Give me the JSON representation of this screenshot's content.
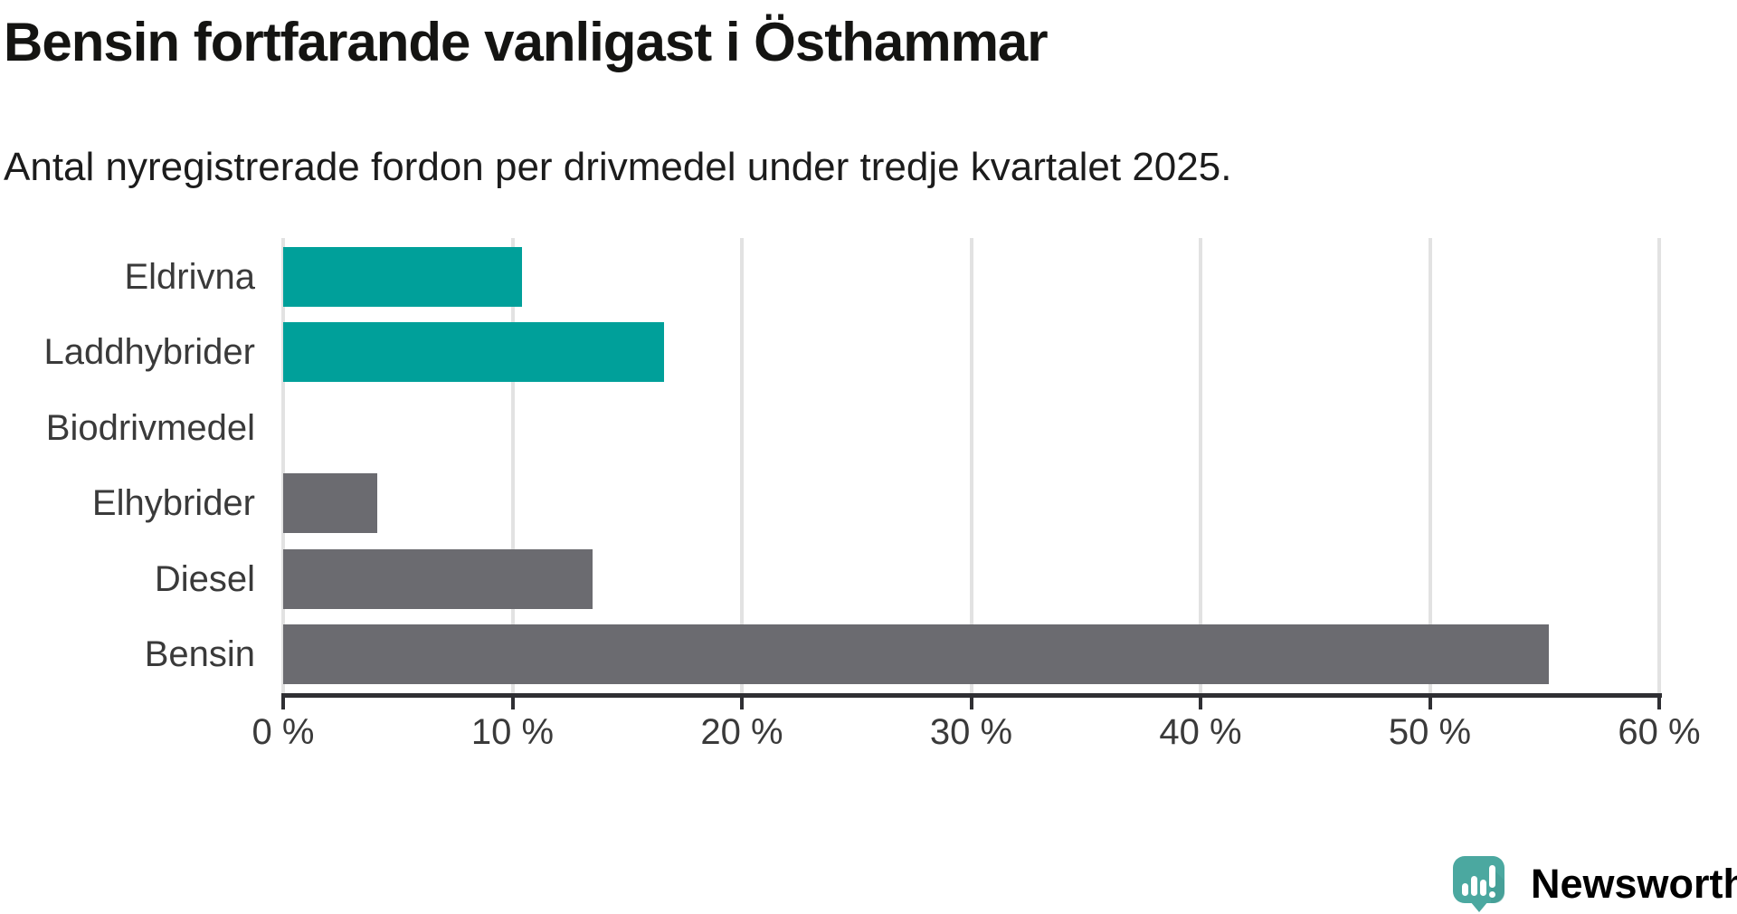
{
  "header": {
    "title": "Bensin fortfarande vanligast i Östhammar",
    "subtitle": "Antal nyregistrerade fordon per drivmedel under tredje kvartalet 2025."
  },
  "chart_data": {
    "type": "bar",
    "orientation": "horizontal",
    "title": "Bensin fortfarande vanligast i Östhammar",
    "subtitle": "Antal nyregistrerade fordon per drivmedel under tredje kvartalet 2025.",
    "categories": [
      "Eldrivna",
      "Laddhybrider",
      "Biodrivmedel",
      "Elhybrider",
      "Diesel",
      "Bensin"
    ],
    "values": [
      10.4,
      16.6,
      0,
      4.1,
      13.5,
      55.2
    ],
    "unit": "%",
    "xlim": [
      0,
      60
    ],
    "x_tick_values": [
      0,
      10,
      20,
      30,
      40,
      50,
      60
    ],
    "x_tick_labels": [
      "0 %",
      "10 %",
      "20 %",
      "30 %",
      "40 %",
      "50 %",
      "60 %"
    ],
    "bar_colors": [
      "#00a09a",
      "#00a09a",
      "#6b6b70",
      "#6b6b70",
      "#6b6b70",
      "#6b6b70"
    ],
    "grid": "vertical",
    "legend": "none"
  },
  "colors": {
    "accent_teal": "#00a09a",
    "bar_gray": "#6b6b70",
    "gridline": "#e2e2e2",
    "axis": "#2f2f33",
    "label_text": "#3a3a3a",
    "title_text": "#141412"
  },
  "branding": {
    "logo_text": "Newsworthy",
    "logo_text_color": "#47a29b",
    "logo_icon_color": "#4ba8a0",
    "logo_icon_shade": "#41978f"
  }
}
